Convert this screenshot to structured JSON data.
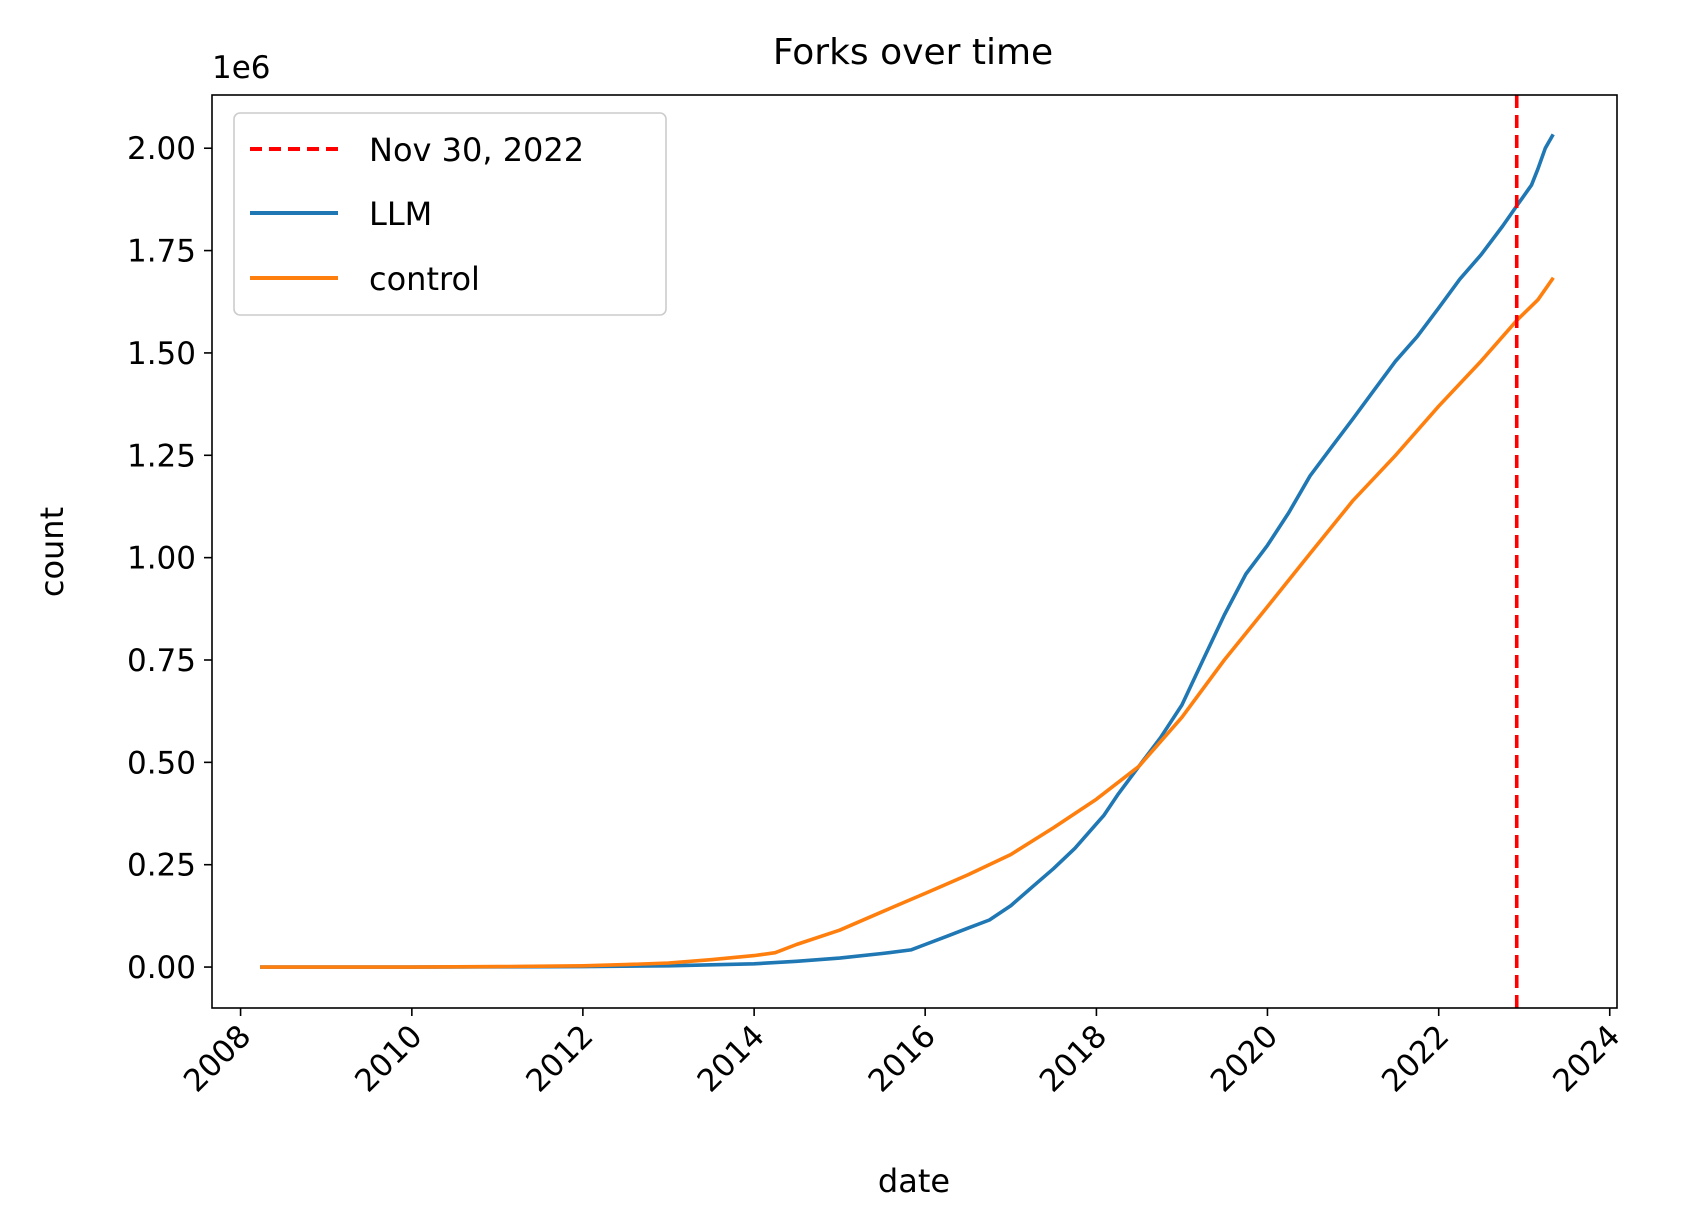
{
  "chart_data": {
    "type": "line",
    "title": "Forks over time",
    "xlabel": "date",
    "ylabel": "count",
    "y_offset_label": "1e6",
    "xlim": [
      "2007-09-01",
      "2024-02-01"
    ],
    "ylim": [
      -100000,
      2130000
    ],
    "x_ticks": [
      {
        "value": "2008-01-01",
        "label": "2008"
      },
      {
        "value": "2010-01-01",
        "label": "2010"
      },
      {
        "value": "2012-01-01",
        "label": "2012"
      },
      {
        "value": "2014-01-01",
        "label": "2014"
      },
      {
        "value": "2016-01-01",
        "label": "2016"
      },
      {
        "value": "2018-01-01",
        "label": "2018"
      },
      {
        "value": "2020-01-01",
        "label": "2020"
      },
      {
        "value": "2022-01-01",
        "label": "2022"
      },
      {
        "value": "2024-01-01",
        "label": "2024"
      }
    ],
    "y_ticks": [
      {
        "value": 0,
        "label": "0.00"
      },
      {
        "value": 250000,
        "label": "0.25"
      },
      {
        "value": 500000,
        "label": "0.50"
      },
      {
        "value": 750000,
        "label": "0.75"
      },
      {
        "value": 1000000,
        "label": "1.00"
      },
      {
        "value": 1250000,
        "label": "1.25"
      },
      {
        "value": 1500000,
        "label": "1.50"
      },
      {
        "value": 1750000,
        "label": "1.75"
      },
      {
        "value": 2000000,
        "label": "2.00"
      }
    ],
    "grid": false,
    "legend_position": "upper-left",
    "vline": {
      "x": "2022-11-30",
      "label": "Nov 30, 2022",
      "color": "#ff0000",
      "style": "dashed"
    },
    "series": [
      {
        "name": "LLM",
        "color": "#1f77b4",
        "points": [
          [
            "2008-04-01",
            0
          ],
          [
            "2010-01-01",
            0
          ],
          [
            "2012-01-01",
            1000
          ],
          [
            "2013-01-01",
            3000
          ],
          [
            "2014-01-01",
            8000
          ],
          [
            "2014-07-01",
            14000
          ],
          [
            "2015-01-01",
            22000
          ],
          [
            "2015-07-01",
            33000
          ],
          [
            "2015-11-01",
            42000
          ],
          [
            "2016-01-01",
            55000
          ],
          [
            "2016-04-01",
            75000
          ],
          [
            "2016-07-01",
            95000
          ],
          [
            "2016-10-01",
            115000
          ],
          [
            "2017-01-01",
            150000
          ],
          [
            "2017-04-01",
            195000
          ],
          [
            "2017-07-01",
            240000
          ],
          [
            "2017-10-01",
            290000
          ],
          [
            "2018-01-01",
            350000
          ],
          [
            "2018-02-01",
            370000
          ],
          [
            "2018-04-01",
            420000
          ],
          [
            "2018-07-01",
            490000
          ],
          [
            "2018-10-01",
            560000
          ],
          [
            "2019-01-01",
            640000
          ],
          [
            "2019-04-01",
            750000
          ],
          [
            "2019-07-01",
            860000
          ],
          [
            "2019-10-01",
            960000
          ],
          [
            "2020-01-01",
            1030000
          ],
          [
            "2020-04-01",
            1110000
          ],
          [
            "2020-07-01",
            1200000
          ],
          [
            "2020-10-01",
            1270000
          ],
          [
            "2021-01-01",
            1340000
          ],
          [
            "2021-04-01",
            1410000
          ],
          [
            "2021-07-01",
            1480000
          ],
          [
            "2021-10-01",
            1540000
          ],
          [
            "2022-01-01",
            1610000
          ],
          [
            "2022-04-01",
            1680000
          ],
          [
            "2022-07-01",
            1740000
          ],
          [
            "2022-10-01",
            1810000
          ],
          [
            "2022-12-01",
            1860000
          ],
          [
            "2023-02-01",
            1910000
          ],
          [
            "2023-03-01",
            1950000
          ],
          [
            "2023-04-01",
            2000000
          ],
          [
            "2023-05-01",
            2030000
          ]
        ]
      },
      {
        "name": "control",
        "color": "#ff7f0e",
        "points": [
          [
            "2008-04-01",
            0
          ],
          [
            "2010-01-01",
            0
          ],
          [
            "2011-01-01",
            1000
          ],
          [
            "2012-01-01",
            3000
          ],
          [
            "2012-07-01",
            6000
          ],
          [
            "2013-01-01",
            10000
          ],
          [
            "2013-07-01",
            18000
          ],
          [
            "2014-01-01",
            28000
          ],
          [
            "2014-04-01",
            35000
          ],
          [
            "2014-07-01",
            55000
          ],
          [
            "2015-01-01",
            90000
          ],
          [
            "2015-07-01",
            135000
          ],
          [
            "2016-01-01",
            180000
          ],
          [
            "2016-07-01",
            225000
          ],
          [
            "2017-01-01",
            275000
          ],
          [
            "2017-07-01",
            340000
          ],
          [
            "2018-01-01",
            410000
          ],
          [
            "2018-07-01",
            490000
          ],
          [
            "2019-01-01",
            610000
          ],
          [
            "2019-07-01",
            750000
          ],
          [
            "2020-01-01",
            880000
          ],
          [
            "2020-07-01",
            1010000
          ],
          [
            "2021-01-01",
            1140000
          ],
          [
            "2021-07-01",
            1250000
          ],
          [
            "2022-01-01",
            1370000
          ],
          [
            "2022-07-01",
            1480000
          ],
          [
            "2022-12-01",
            1580000
          ],
          [
            "2023-03-01",
            1630000
          ],
          [
            "2023-05-01",
            1680000
          ]
        ]
      }
    ]
  }
}
